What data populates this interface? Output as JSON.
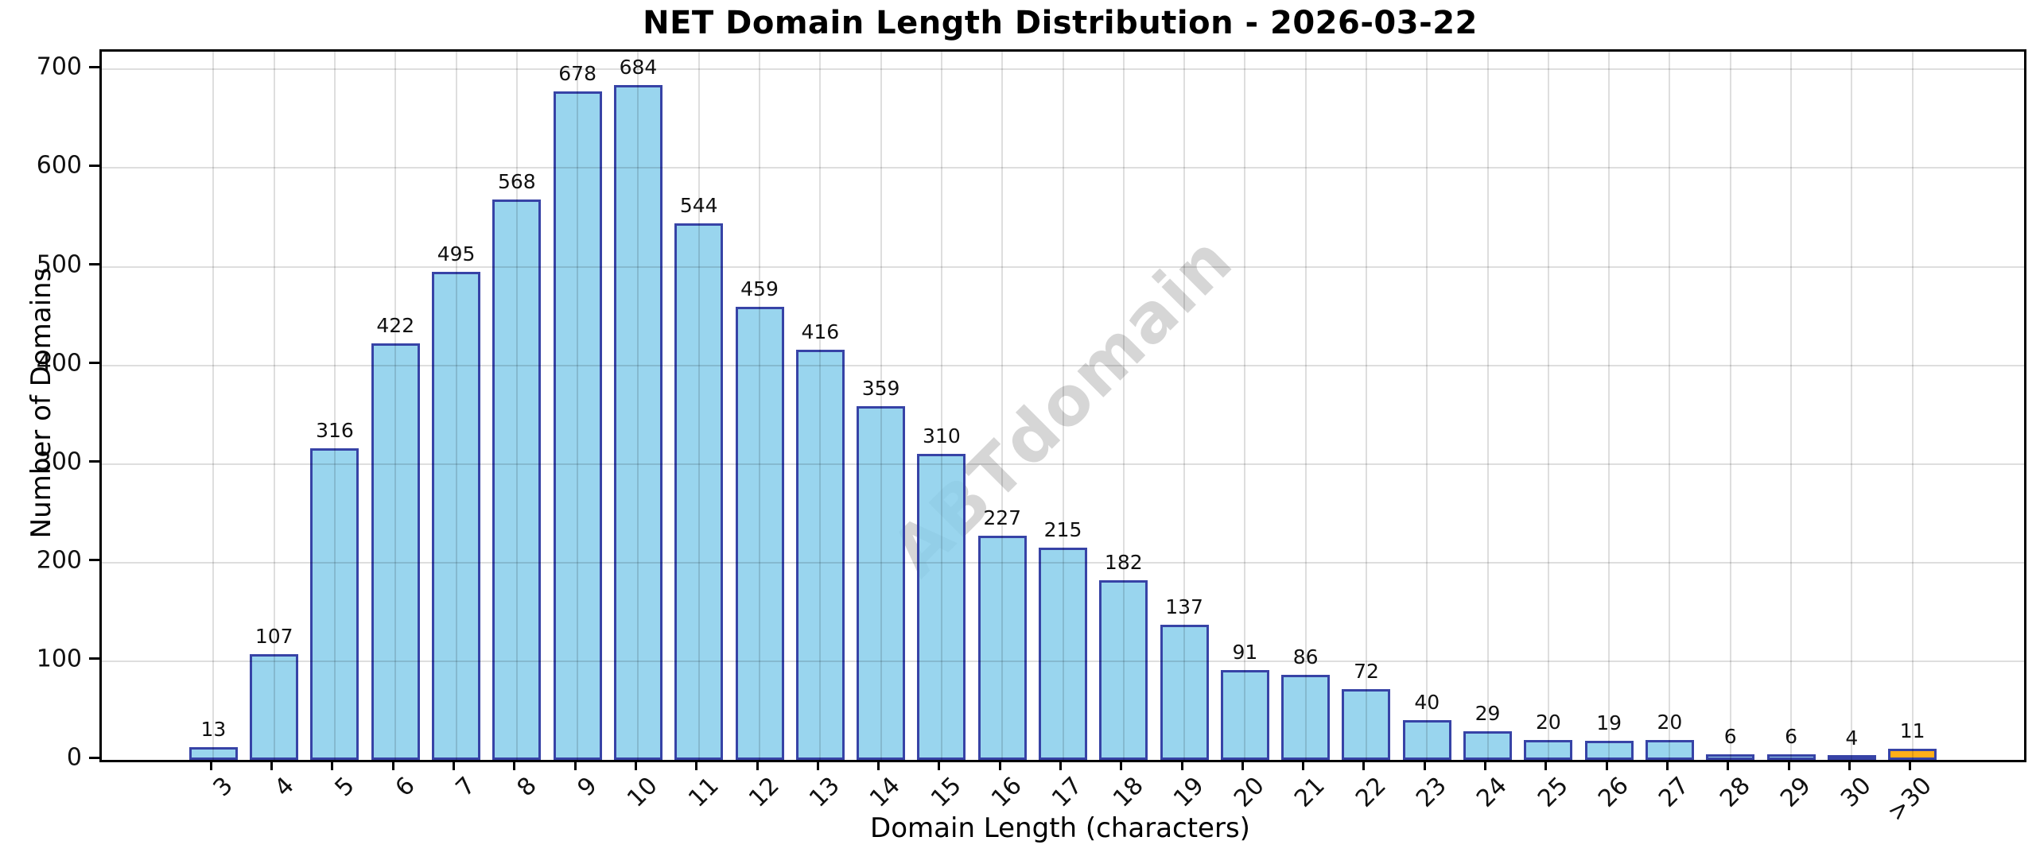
{
  "chart_data": {
    "type": "bar",
    "title": "NET Domain Length Distribution - 2026-03-22",
    "xlabel": "Domain Length (characters)",
    "ylabel": "Number of Domains",
    "watermark": "ABTdomain",
    "categories": [
      "3",
      "4",
      "5",
      "6",
      "7",
      "8",
      "9",
      "10",
      "11",
      "12",
      "13",
      "14",
      "15",
      "16",
      "17",
      "18",
      "19",
      "20",
      "21",
      "22",
      "23",
      "24",
      "25",
      "26",
      "27",
      "28",
      "29",
      "30",
      ">30"
    ],
    "values": [
      13,
      107,
      316,
      422,
      495,
      568,
      678,
      684,
      544,
      459,
      416,
      359,
      310,
      227,
      215,
      182,
      137,
      91,
      86,
      72,
      40,
      29,
      20,
      19,
      20,
      6,
      6,
      4,
      11
    ],
    "yticks": [
      0,
      100,
      200,
      300,
      400,
      500,
      600,
      700
    ],
    "ylim": [
      0,
      718
    ],
    "grid": true,
    "legend": null,
    "bar_fill_color": "rgba(135,206,235,0.85)",
    "bar_edge_color": "#3743a6",
    "highlight_category": ">30",
    "highlight_fill_color": "rgba(255,165,0,0.9)",
    "bar_width_fraction": 0.8,
    "x_margin_fraction": 0.05
  }
}
